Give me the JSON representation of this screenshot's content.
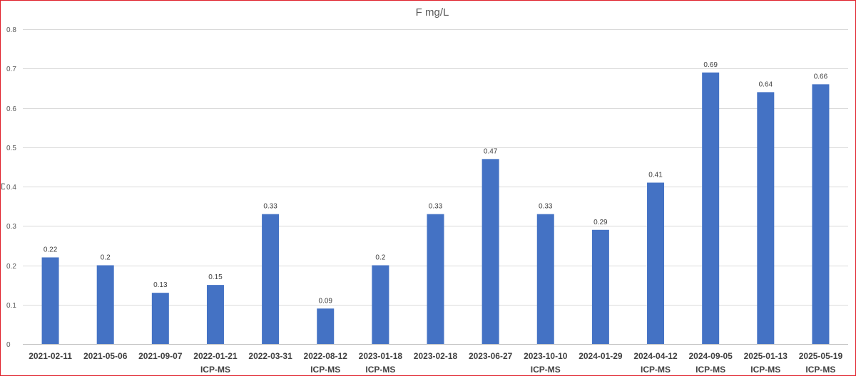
{
  "chart_data": {
    "type": "bar",
    "title": "F mg/L",
    "xlabel": "",
    "ylabel": "",
    "ylim": [
      0,
      0.8
    ],
    "yticks": [
      "0",
      "0.1",
      "0.2",
      "0.3",
      "0.4",
      "0.5",
      "0.6",
      "0.7",
      "0.8"
    ],
    "grid": true,
    "legend": "none",
    "bar_color": "#4472c4",
    "categories": [
      {
        "date": "2021-02-11",
        "method": ""
      },
      {
        "date": "2021-05-06",
        "method": ""
      },
      {
        "date": "2021-09-07",
        "method": ""
      },
      {
        "date": "2022-01-21",
        "method": "ICP-MS"
      },
      {
        "date": "2022-03-31",
        "method": ""
      },
      {
        "date": "2022-08-12",
        "method": "ICP-MS"
      },
      {
        "date": "2023-01-18",
        "method": "ICP-MS"
      },
      {
        "date": "2023-02-18",
        "method": ""
      },
      {
        "date": "2023-06-27",
        "method": ""
      },
      {
        "date": "2023-10-10",
        "method": "ICP-MS"
      },
      {
        "date": "2024-01-29",
        "method": ""
      },
      {
        "date": "2024-04-12",
        "method": "ICP-MS"
      },
      {
        "date": "2024-09-05",
        "method": "ICP-MS"
      },
      {
        "date": "2025-01-13",
        "method": "ICP-MS"
      },
      {
        "date": "2025-05-19",
        "method": "ICP-MS"
      }
    ],
    "values": [
      0.22,
      0.2,
      0.13,
      0.15,
      0.33,
      0.09,
      0.2,
      0.33,
      0.47,
      0.33,
      0.29,
      0.41,
      0.69,
      0.64,
      0.66
    ],
    "data_labels": [
      "0.22",
      "0.2",
      "0.13",
      "0.15",
      "0.33",
      "0.09",
      "0.2",
      "0.33",
      "0.47",
      "0.33",
      "0.29",
      "0.41",
      "0.69",
      "0.64",
      "0.66"
    ]
  },
  "frame_color": "#e0202a",
  "stray_text": "D"
}
